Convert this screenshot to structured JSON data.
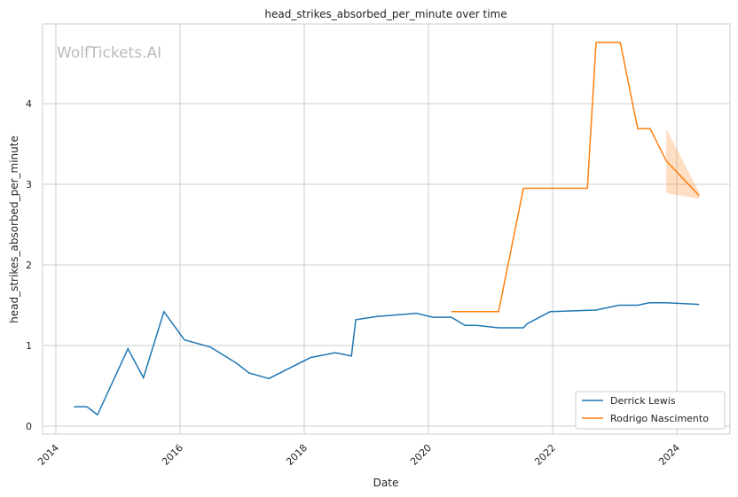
{
  "chart_data": {
    "type": "line",
    "title": "head_strikes_absorbed_per_minute over time",
    "xlabel": "Date",
    "ylabel": "head_strikes_absorbed_per_minute",
    "watermark": "WolfTickets.AI",
    "xlim": [
      2013.8,
      2024.9
    ],
    "ylim": [
      -0.1,
      4.98
    ],
    "xticks": [
      "2014",
      "2016",
      "2018",
      "2020",
      "2022",
      "2024"
    ],
    "yticks": [
      "0",
      "1",
      "2",
      "3",
      "4"
    ],
    "grid": true,
    "legend_position": "bottom-right",
    "series": [
      {
        "name": "Derrick Lewis",
        "color": "#1f77b4",
        "x": [
          2014.29,
          2014.5,
          2014.67,
          2015.16,
          2015.41,
          2015.74,
          2016.07,
          2016.49,
          2016.91,
          2017.11,
          2017.43,
          2018.1,
          2018.5,
          2018.76,
          2018.83,
          2019.17,
          2019.81,
          2020.07,
          2020.37,
          2020.59,
          2020.77,
          2021.13,
          2021.53,
          2021.59,
          2021.96,
          2022.7,
          2023.07,
          2023.37,
          2023.56,
          2023.83,
          2024.36
        ],
        "y": [
          0.24,
          0.24,
          0.14,
          0.96,
          0.6,
          1.42,
          1.07,
          0.98,
          0.78,
          0.66,
          0.59,
          0.85,
          0.91,
          0.87,
          1.32,
          1.36,
          1.4,
          1.35,
          1.35,
          1.25,
          1.25,
          1.22,
          1.22,
          1.27,
          1.42,
          1.44,
          1.5,
          1.5,
          1.53,
          1.53,
          1.51
        ]
      },
      {
        "name": "Rodrigo Nascimento",
        "color": "#ff7f0e",
        "x": [
          2020.37,
          2021.13,
          2021.53,
          2022.56,
          2022.7,
          2023.09,
          2023.37,
          2023.57,
          2023.83,
          2024.36
        ],
        "y": [
          1.42,
          1.42,
          2.95,
          2.95,
          4.76,
          4.76,
          3.69,
          3.69,
          3.29,
          2.86
        ],
        "band": {
          "x": [
            2023.83,
            2024.36
          ],
          "upper": [
            3.69,
            2.9
          ],
          "lower": [
            2.89,
            2.82
          ]
        }
      }
    ]
  }
}
